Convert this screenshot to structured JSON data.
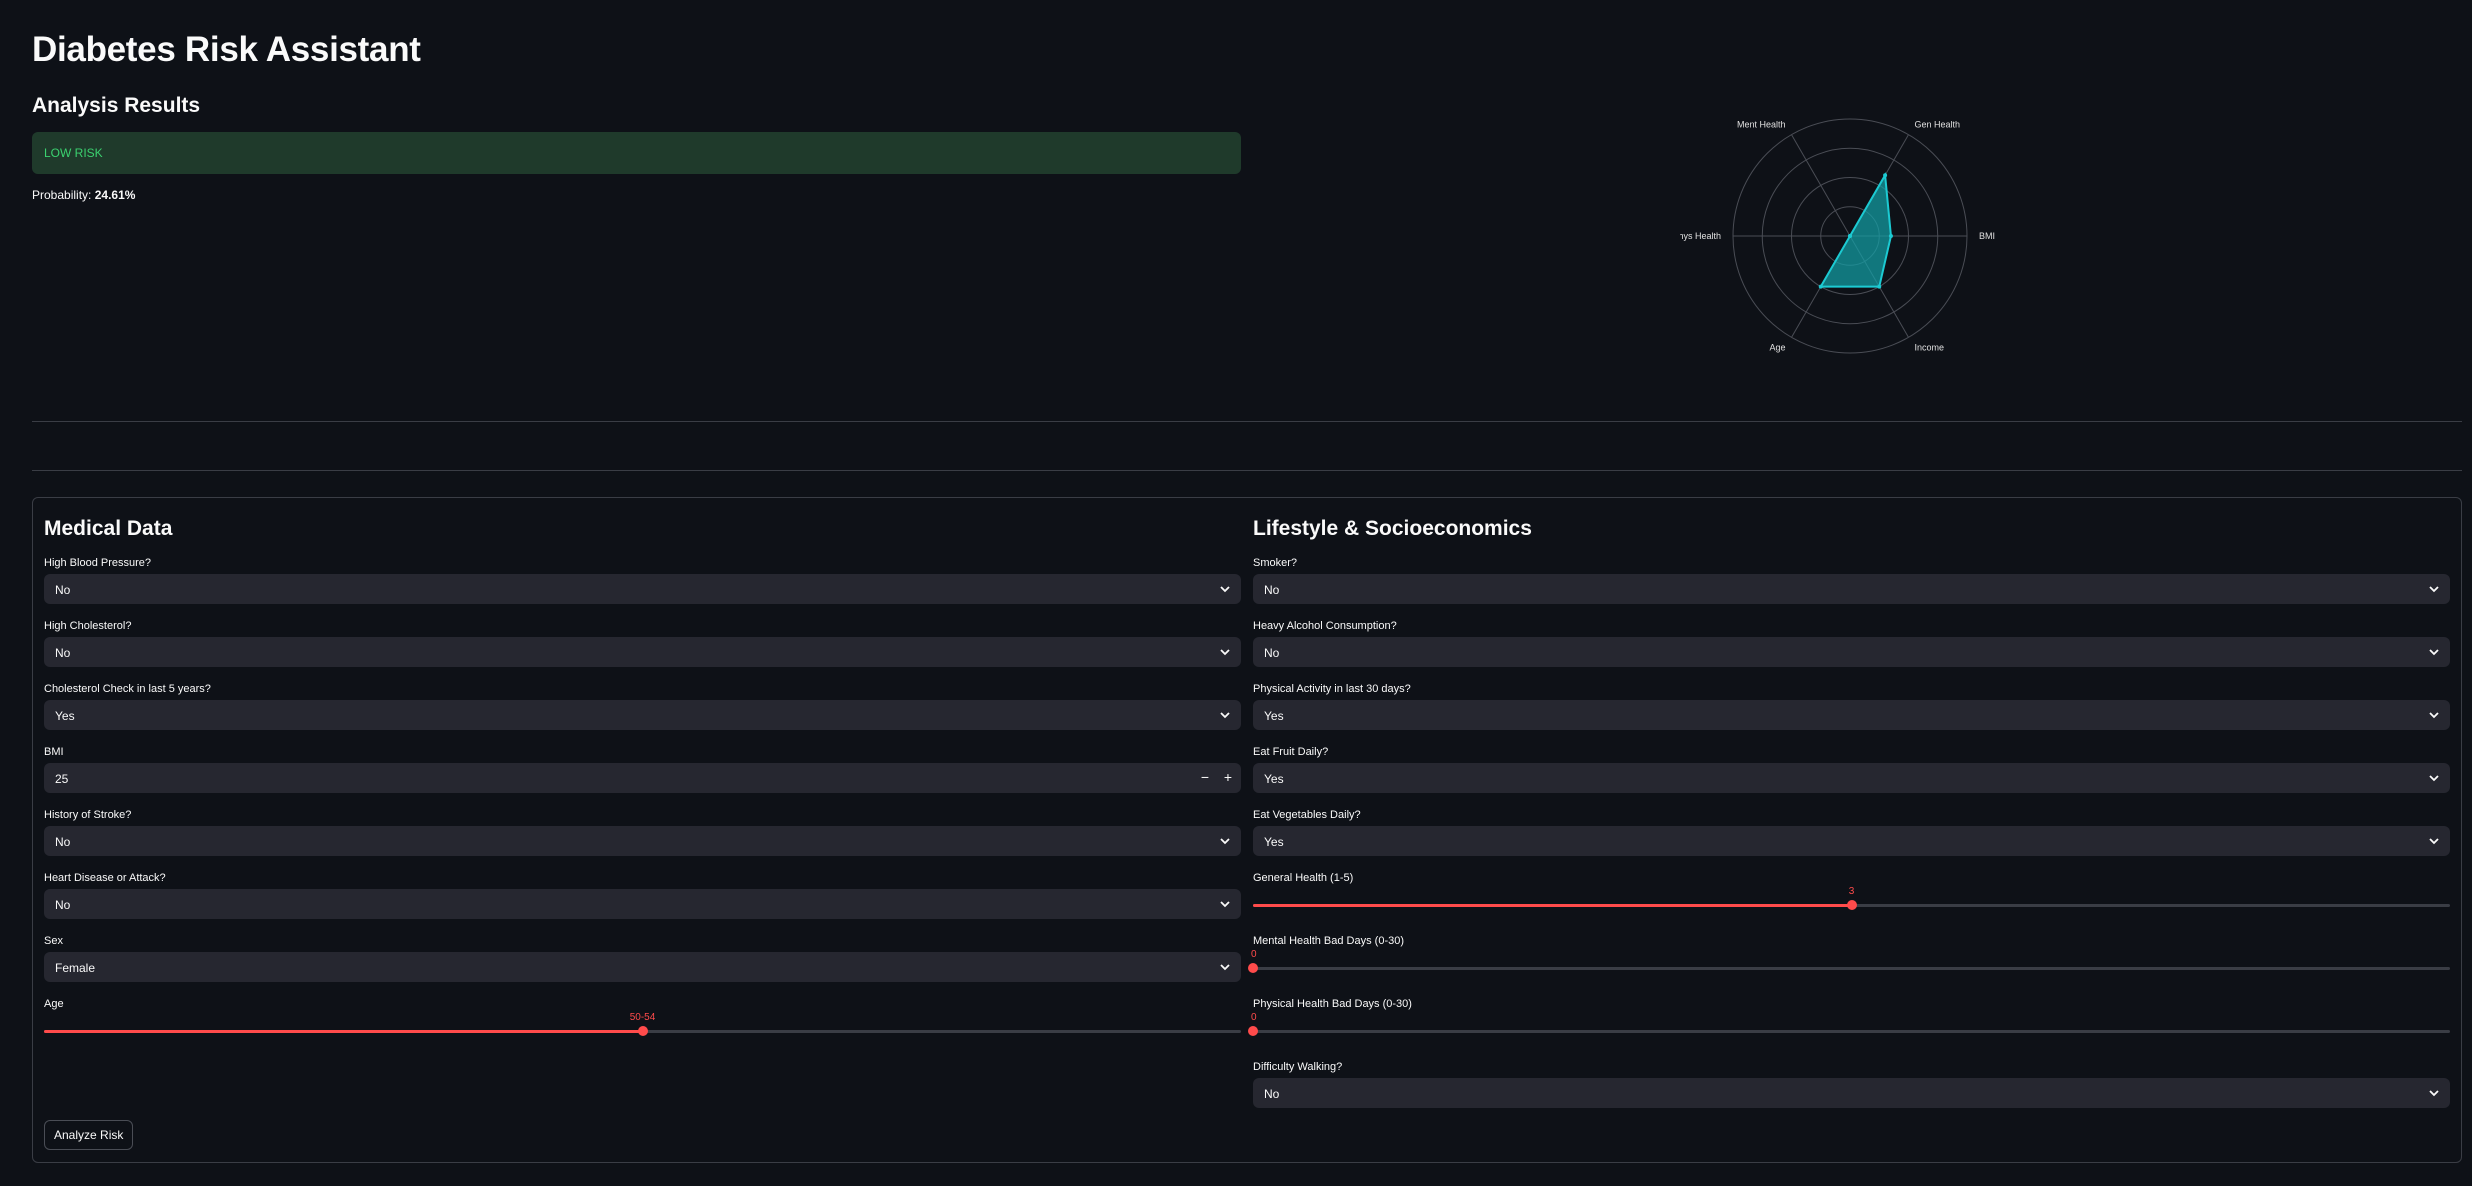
{
  "app": {
    "title": "Diabetes Risk Assistant"
  },
  "results": {
    "heading": "Analysis Results",
    "risk_label": "LOW RISK",
    "probability_label": "Probability:",
    "probability_value": "24.61%"
  },
  "chart_data": {
    "type": "radar",
    "axes": [
      "BMI",
      "Gen Health",
      "Ment Health",
      "Phys Health",
      "Age",
      "Income"
    ],
    "values": [
      0.35,
      0.6,
      0.0,
      0.0,
      0.5,
      0.5
    ],
    "rmax": 1.0,
    "rings": 4,
    "colors": {
      "fill": "#13a3aa",
      "line": "#1ccad2",
      "grid": "#4a4d55",
      "label": "#e0e0e0"
    }
  },
  "medical": {
    "heading": "Medical Data",
    "fields": [
      {
        "label": "High Blood Pressure?",
        "value": "No"
      },
      {
        "label": "High Cholesterol?",
        "value": "No"
      },
      {
        "label": "Cholesterol Check in last 5 years?",
        "value": "Yes"
      }
    ],
    "bmi": {
      "label": "BMI",
      "value": "25",
      "minus": "−",
      "plus": "+"
    },
    "fields2": [
      {
        "label": "History of Stroke?",
        "value": "No"
      },
      {
        "label": "Heart Disease or Attack?",
        "value": "No"
      },
      {
        "label": "Sex",
        "value": "Female"
      }
    ],
    "age": {
      "label": "Age",
      "value": "50-54",
      "fraction": 0.5
    }
  },
  "lifestyle": {
    "heading": "Lifestyle & Socioeconomics",
    "fields": [
      {
        "label": "Smoker?",
        "value": "No"
      },
      {
        "label": "Heavy Alcohol Consumption?",
        "value": "No"
      },
      {
        "label": "Physical Activity in last 30 days?",
        "value": "Yes"
      },
      {
        "label": "Eat Fruit Daily?",
        "value": "Yes"
      },
      {
        "label": "Eat Vegetables Daily?",
        "value": "Yes"
      }
    ],
    "sliders": [
      {
        "label": "General Health (1-5)",
        "value": "3",
        "fraction": 0.5
      },
      {
        "label": "Mental Health Bad Days (0-30)",
        "value": "0",
        "fraction": 0.0
      },
      {
        "label": "Physical Health Bad Days (0-30)",
        "value": "0",
        "fraction": 0.0
      }
    ],
    "walking": {
      "label": "Difficulty Walking?",
      "value": "No"
    }
  },
  "actions": {
    "analyze_label": "Analyze Risk"
  },
  "colors": {
    "background": "#0e1117",
    "accent": "#ff4b4b",
    "success_bg": "#1f3a2b",
    "success_text": "#3bd16f"
  }
}
